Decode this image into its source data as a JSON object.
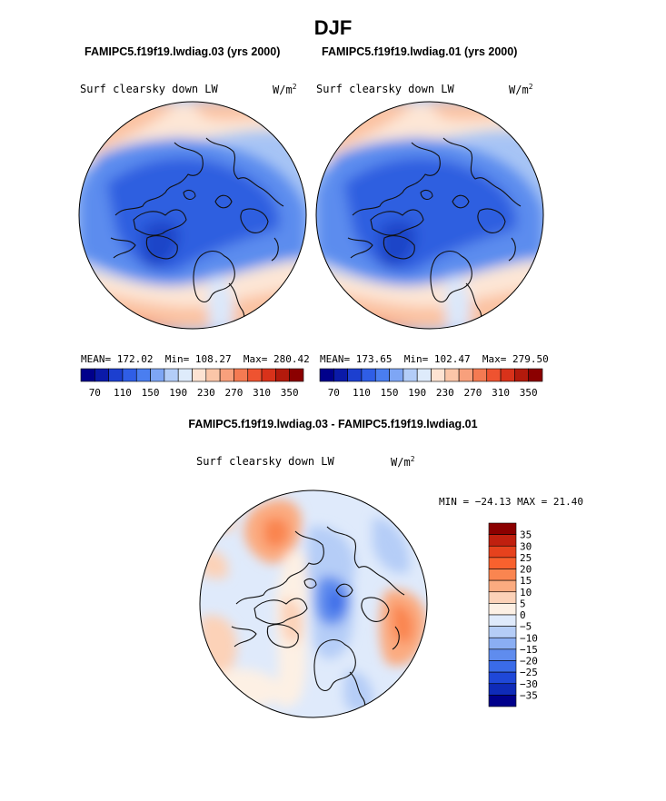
{
  "title": "DJF",
  "panels": [
    {
      "case_title": "FAMIPC5.f19f19.lwdiag.03 (yrs 2000)",
      "variable": "Surf clearsky down LW",
      "units": "W/m",
      "units_exp": "2",
      "stats": {
        "mean_label": "MEAN=",
        "mean": "172.02",
        "min_label": "Min=",
        "min": "108.27",
        "max_label": "Max=",
        "max": "280.42"
      },
      "colorbar_ticks": [
        "70",
        "110",
        "150",
        "190",
        "230",
        "270",
        "310",
        "350"
      ]
    },
    {
      "case_title": "FAMIPC5.f19f19.lwdiag.01 (yrs 2000)",
      "variable": "Surf clearsky down LW",
      "units": "W/m",
      "units_exp": "2",
      "stats": {
        "mean_label": "MEAN=",
        "mean": "173.65",
        "min_label": "Min=",
        "min": "102.47",
        "max_label": "Max=",
        "max": "279.50"
      },
      "colorbar_ticks": [
        "70",
        "110",
        "150",
        "190",
        "230",
        "270",
        "310",
        "350"
      ]
    }
  ],
  "diff": {
    "title": "FAMIPC5.f19f19.lwdiag.03 - FAMIPC5.f19f19.lwdiag.01",
    "variable": "Surf clearsky down LW",
    "units": "W/m",
    "units_exp": "2",
    "stats": "MIN = −24.13 MAX =  21.40",
    "colorbar_labels": [
      "35",
      "30",
      "25",
      "20",
      "15",
      "10",
      "5",
      "0",
      "−5",
      "−10",
      "−15",
      "−20",
      "−25",
      "−30",
      "−35"
    ]
  },
  "colors": {
    "abs_scale": [
      "#00008b",
      "#0a1aa8",
      "#1c3fcf",
      "#2f5ee6",
      "#4a7ef0",
      "#7ea6f5",
      "#b3cdf8",
      "#deebfb",
      "#fde3d2",
      "#fbc6a8",
      "#f8a07c",
      "#f47a52",
      "#ee5330",
      "#d8321a",
      "#b31a0c",
      "#8b0000"
    ],
    "diff_scale": [
      "#8b0000",
      "#c0200f",
      "#e6421d",
      "#f8612e",
      "#fa8550",
      "#fbab80",
      "#fcd2b8",
      "#fdf0e4",
      "#dfeafb",
      "#b5cdf7",
      "#8aaef3",
      "#5f8cee",
      "#3a6be8",
      "#1f48d8",
      "#0f2bb8",
      "#00008b"
    ],
    "map": {
      "darkblue": "#2f5fe0",
      "blue": "#5c8cee",
      "lightblue": "#a7c4f5",
      "paleblue": "#dbe8fb",
      "pale": "#fde6d6",
      "peach": "#fbc3a3",
      "salmon": "#f69a77",
      "red": "#ef6f4b",
      "coast": "#111111"
    }
  }
}
